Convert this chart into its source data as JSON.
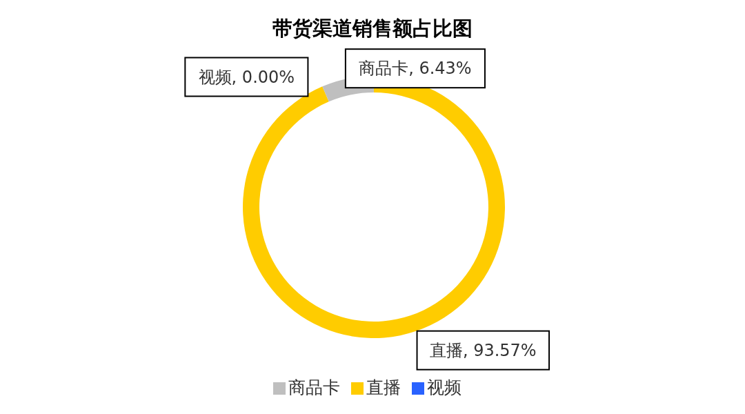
{
  "chart_data": {
    "type": "donut",
    "title": "带货渠道销售额占比图",
    "categories": [
      "直播",
      "视频",
      "商品卡"
    ],
    "values": [
      93.57,
      0.0,
      6.43
    ],
    "colors": [
      "#ffcc00",
      "#2962ff",
      "#bfbfbf"
    ],
    "value_labels": [
      "直播, 93.57%",
      "视频, 0.00%",
      "商品卡, 6.43%"
    ],
    "legend": "bottom"
  }
}
